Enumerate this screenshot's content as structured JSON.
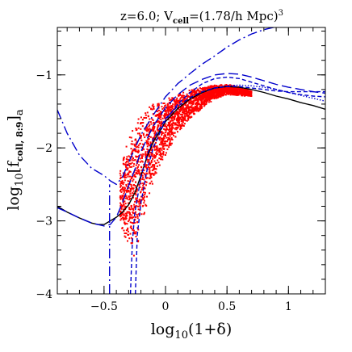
{
  "chart_data": {
    "type": "scatter",
    "title": {
      "prefix": "z=6.0; V",
      "subscript": "cell",
      "middle": "=(1.78/h Mpc)",
      "superscript": "3"
    },
    "xlabel": {
      "prefix": "log",
      "subscript": "10",
      "body": "(1+δ)"
    },
    "ylabel": {
      "prefix": "log",
      "subscript": "10",
      "open": "[f",
      "inner_sub": "coll, 8:9",
      "close": "]",
      "outer_sub": "a"
    },
    "xlim": [
      -0.88,
      1.3
    ],
    "ylim": [
      -4.0,
      -0.35
    ],
    "x_ticks": [
      -0.5,
      0,
      0.5,
      1
    ],
    "x_tick_labels": [
      "−0.5",
      "0",
      "0.5",
      "1"
    ],
    "y_ticks": [
      -4,
      -3,
      -2,
      -1
    ],
    "y_tick_labels": [
      "−4",
      "−3",
      "−2",
      "−1"
    ],
    "x_minor_step": 0.1,
    "y_minor_step": 0.2,
    "grid": false,
    "colors": {
      "points": "#ff0000",
      "solid": "#000000",
      "blue": "#0000cc"
    },
    "scatter_band": {
      "description_series": "simulation cells",
      "x": [
        -0.37,
        -0.3,
        -0.25,
        -0.2,
        -0.15,
        -0.1,
        0.0,
        0.1,
        0.2,
        0.3,
        0.4,
        0.5,
        0.6,
        0.7
      ],
      "y_top": [
        -2.3,
        -1.85,
        -1.65,
        -1.55,
        -1.45,
        -1.4,
        -1.33,
        -1.26,
        -1.21,
        -1.17,
        -1.14,
        -1.13,
        -1.16,
        -1.22
      ],
      "y_bottom": [
        -3.05,
        -3.35,
        -3.5,
        -3.2,
        -2.75,
        -2.5,
        -2.1,
        -1.8,
        -1.6,
        -1.45,
        -1.33,
        -1.27,
        -1.28,
        -1.3
      ]
    },
    "series": [
      {
        "style": "solid",
        "color": "#000000",
        "x": [
          -0.88,
          -0.8,
          -0.7,
          -0.6,
          -0.55,
          -0.5,
          -0.45,
          -0.4,
          -0.35,
          -0.3,
          -0.25,
          -0.2,
          -0.15,
          -0.1,
          0.0,
          0.1,
          0.2,
          0.3,
          0.4,
          0.5,
          0.6,
          0.7,
          0.8,
          0.9,
          1.0,
          1.1,
          1.2,
          1.3
        ],
        "y": [
          -2.8,
          -2.88,
          -2.96,
          -3.03,
          -3.05,
          -3.05,
          -3.0,
          -2.95,
          -2.88,
          -2.78,
          -2.62,
          -2.38,
          -2.12,
          -1.92,
          -1.64,
          -1.46,
          -1.33,
          -1.24,
          -1.18,
          -1.16,
          -1.17,
          -1.2,
          -1.24,
          -1.29,
          -1.33,
          -1.38,
          -1.42,
          -1.47
        ]
      },
      {
        "style": "dotted",
        "color": "#0000cc",
        "x": [
          0.35,
          0.5,
          0.6,
          0.7,
          0.8,
          0.9,
          1.0,
          1.1,
          1.2,
          1.3
        ],
        "y": [
          -1.2,
          -1.15,
          -1.14,
          -1.15,
          -1.17,
          -1.2,
          -1.24,
          -1.28,
          -1.32,
          -1.36
        ]
      },
      {
        "style": "dashed",
        "color": "#0000cc",
        "x": [
          -0.285,
          -0.27,
          -0.25,
          -0.2,
          -0.15,
          -0.1,
          0.0,
          0.1,
          0.2,
          0.3,
          0.4,
          0.5,
          0.6,
          0.7,
          0.8,
          0.9,
          1.0,
          1.1,
          1.2,
          1.3
        ],
        "y": [
          -4.0,
          -3.3,
          -2.9,
          -2.4,
          -2.1,
          -1.88,
          -1.6,
          -1.43,
          -1.31,
          -1.23,
          -1.18,
          -1.16,
          -1.16,
          -1.18,
          -1.2,
          -1.22,
          -1.23,
          -1.23,
          -1.23,
          -1.23
        ]
      },
      {
        "style": "dashed",
        "color": "#0000cc",
        "x": [
          -0.245,
          -0.23,
          -0.2,
          -0.15,
          -0.1,
          0.0,
          0.1,
          0.2,
          0.3,
          0.4,
          0.5,
          0.6,
          0.7,
          0.8,
          0.9,
          1.0,
          1.1,
          1.2,
          1.3
        ],
        "y": [
          -4.0,
          -3.2,
          -2.75,
          -2.3,
          -2.0,
          -1.62,
          -1.4,
          -1.24,
          -1.12,
          -1.05,
          -1.03,
          -1.05,
          -1.1,
          -1.15,
          -1.2,
          -1.24,
          -1.27,
          -1.29,
          -1.3
        ]
      },
      {
        "style": "longdash",
        "color": "#0000cc",
        "x": [
          -0.88,
          -0.8,
          -0.7,
          -0.6,
          -0.5,
          -0.45,
          -0.4,
          -0.35,
          -0.3,
          -0.25,
          -0.2,
          -0.1,
          0.0,
          0.1,
          0.2,
          0.3,
          0.4,
          0.5,
          0.6,
          0.7,
          0.8,
          0.9,
          1.0,
          1.1,
          1.2,
          1.3
        ],
        "y": [
          -2.82,
          -2.88,
          -2.96,
          -3.03,
          -3.07,
          -3.05,
          -2.95,
          -2.75,
          -2.52,
          -2.3,
          -2.05,
          -1.7,
          -1.45,
          -1.27,
          -1.14,
          -1.06,
          -1.0,
          -0.98,
          -0.99,
          -1.03,
          -1.08,
          -1.13,
          -1.17,
          -1.2,
          -1.23,
          -1.25
        ]
      },
      {
        "style": "dashdot",
        "color": "#0000cc",
        "x": [
          -0.88,
          -0.8,
          -0.7,
          -0.6,
          -0.5,
          -0.45,
          -0.4,
          -0.35,
          -0.3,
          -0.2,
          -0.1,
          0.0,
          0.1,
          0.2,
          0.3,
          0.4,
          0.5,
          0.6,
          0.7,
          0.8,
          0.9
        ],
        "y": [
          -1.48,
          -1.8,
          -2.1,
          -2.28,
          -2.38,
          -2.45,
          -2.5,
          -2.4,
          -2.2,
          -1.82,
          -1.55,
          -1.3,
          -1.12,
          -0.98,
          -0.85,
          -0.74,
          -0.62,
          -0.52,
          -0.44,
          -0.38,
          -0.34
        ]
      },
      {
        "style": "dashdot",
        "color": "#0000cc",
        "x": [
          -0.455,
          -0.455
        ],
        "y": [
          -4.0,
          -2.5
        ]
      }
    ]
  }
}
